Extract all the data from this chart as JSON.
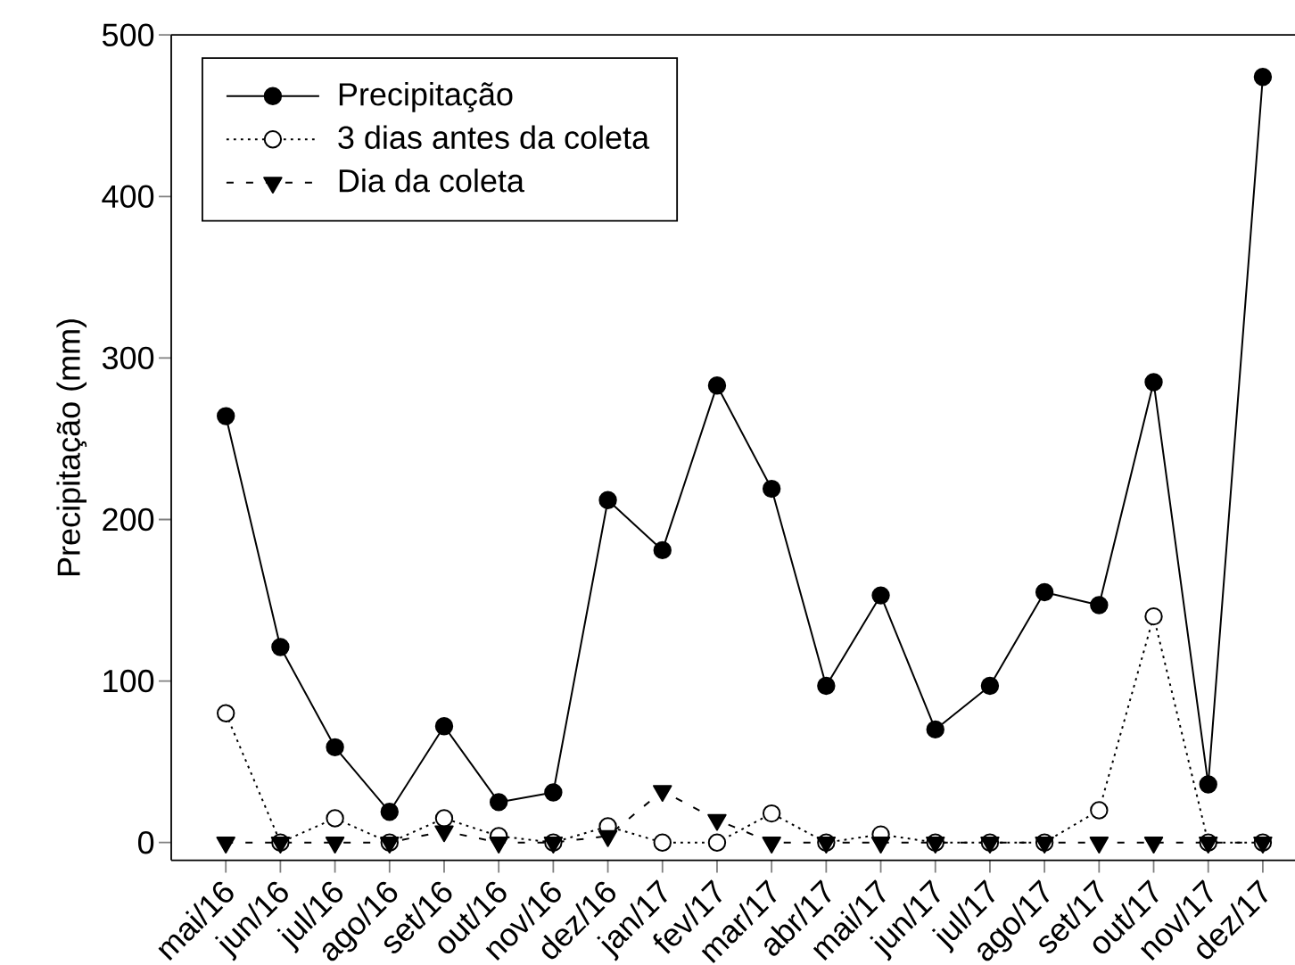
{
  "chart_data": {
    "type": "line",
    "ylabel": "Precipitação (mm)",
    "categories": [
      "mai/16",
      "jun/16",
      "jul/16",
      "ago/16",
      "set/16",
      "out/16",
      "nov/16",
      "dez/16",
      "jan/17",
      "fev/17",
      "mar/17",
      "abr/17",
      "mai/17",
      "jun/17",
      "jul/17",
      "ago/17",
      "set/17",
      "out/17",
      "nov/17",
      "dez/17"
    ],
    "ylim": [
      -11,
      500
    ],
    "yticks": [
      0,
      100,
      200,
      300,
      400,
      500
    ],
    "legend": "top left",
    "series": [
      {
        "name": "Precipitação",
        "color": "#000000",
        "marker": "circle",
        "line_style": "solid",
        "values": [
          264,
          121,
          59,
          19,
          72,
          25,
          31,
          212,
          181,
          283,
          219,
          97,
          153,
          70,
          97,
          155,
          147,
          285,
          36,
          474
        ]
      },
      {
        "name": "3 dias antes da coleta",
        "color": "#000000",
        "marker": "circle-open",
        "line_style": "dotted",
        "values": [
          80,
          0,
          15,
          0,
          15,
          4,
          0,
          10,
          0,
          0,
          18,
          0,
          5,
          0,
          0,
          0,
          20,
          140,
          0,
          0
        ]
      },
      {
        "name": "Dia da coleta",
        "color": "#000000",
        "marker": "triangle-down",
        "line_style": "dashed",
        "values": [
          0,
          0,
          0,
          0,
          7,
          0,
          0,
          4,
          32,
          14,
          0,
          0,
          0,
          0,
          0,
          0,
          0,
          0,
          0,
          0
        ]
      }
    ]
  }
}
